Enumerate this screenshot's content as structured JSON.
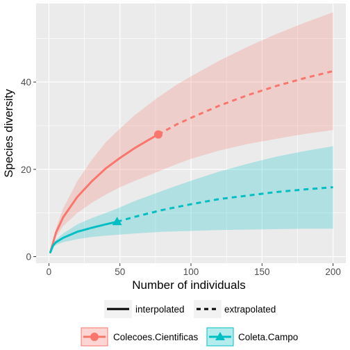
{
  "chart_data": {
    "type": "line",
    "xlabel": "Number of individuals",
    "ylabel": "Species diversity",
    "xlim": [
      -9,
      209
    ],
    "ylim": [
      -1.5,
      58
    ],
    "x_ticks": [
      0,
      50,
      100,
      150,
      200
    ],
    "y_ticks": [
      0,
      20,
      40
    ],
    "grid": true,
    "line_type_legend": [
      {
        "label": "interpolated",
        "style": "solid"
      },
      {
        "label": "extrapolated",
        "style": "dashed"
      }
    ],
    "series": [
      {
        "name": "Colecoes.Cientificas",
        "color": "#F8766D",
        "marker": "circle",
        "observed": {
          "x": 77,
          "y": 28
        },
        "interpolated": {
          "x": [
            1,
            5,
            10,
            20,
            30,
            40,
            50,
            60,
            70,
            77
          ],
          "y": [
            1,
            5.5,
            9,
            13.7,
            17.2,
            20.2,
            22.6,
            24.8,
            26.7,
            28
          ]
        },
        "extrapolated": {
          "x": [
            77,
            90,
            100,
            120,
            140,
            160,
            180,
            200
          ],
          "y": [
            28,
            30.3,
            31.8,
            34.6,
            37.0,
            39.1,
            40.9,
            42.5
          ]
        },
        "ci_lower": {
          "x": [
            1,
            5,
            10,
            20,
            30,
            40,
            50,
            60,
            70,
            77,
            90,
            100,
            120,
            140,
            160,
            180,
            200
          ],
          "y": [
            1,
            4.5,
            7,
            10,
            12.3,
            14.2,
            15.9,
            17.3,
            18.6,
            19.5,
            21.2,
            22.4,
            24.3,
            25.8,
            27.0,
            28.1,
            29
          ]
        },
        "ci_upper": {
          "x": [
            1,
            5,
            10,
            20,
            30,
            40,
            50,
            60,
            70,
            77,
            90,
            100,
            120,
            140,
            160,
            180,
            200
          ],
          "y": [
            1,
            6.5,
            11,
            17.3,
            22.1,
            26.2,
            29.3,
            32.3,
            34.8,
            36.5,
            39.4,
            41.3,
            44.9,
            48.1,
            51.0,
            53.6,
            56
          ]
        }
      },
      {
        "name": "Coleta.Campo",
        "color": "#00BFC4",
        "marker": "triangle",
        "observed": {
          "x": 48,
          "y": 8
        },
        "interpolated": {
          "x": [
            1,
            3,
            5,
            10,
            20,
            30,
            40,
            48
          ],
          "y": [
            1,
            2.6,
            3.3,
            4.3,
            5.7,
            6.6,
            7.4,
            8
          ]
        },
        "extrapolated": {
          "x": [
            48,
            60,
            80,
            100,
            120,
            140,
            160,
            180,
            200
          ],
          "y": [
            8,
            9.1,
            10.7,
            12,
            13.2,
            14.0,
            14.8,
            15.4,
            15.9
          ]
        },
        "ci_lower": {
          "x": [
            1,
            3,
            5,
            10,
            20,
            30,
            40,
            48,
            60,
            80,
            100,
            120,
            140,
            160,
            180,
            200
          ],
          "y": [
            1,
            2.2,
            2.7,
            3.3,
            4.0,
            4.5,
            4.8,
            5.0,
            5.3,
            5.7,
            5.9,
            6.1,
            6.2,
            6.3,
            6.4,
            6.4
          ]
        },
        "ci_upper": {
          "x": [
            1,
            3,
            5,
            10,
            20,
            30,
            40,
            48,
            60,
            80,
            100,
            120,
            140,
            160,
            180,
            200
          ],
          "y": [
            1,
            3.0,
            3.9,
            5.3,
            7.4,
            8.8,
            10.0,
            11.0,
            12.7,
            15.1,
            17.4,
            19.5,
            21.3,
            22.9,
            24.2,
            25.3
          ]
        }
      }
    ]
  }
}
